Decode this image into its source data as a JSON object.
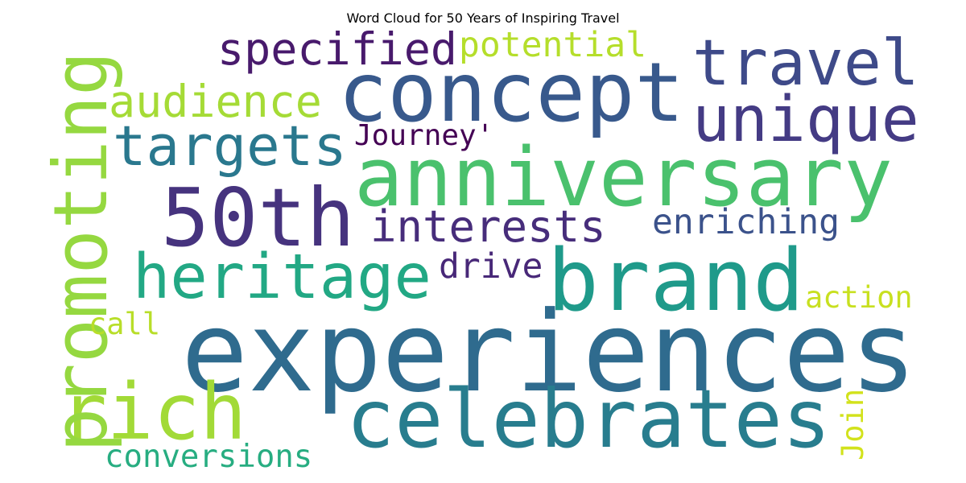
{
  "chart_data": {
    "type": "wordcloud",
    "title": "Word Cloud for 50 Years of Inspiring Travel",
    "words": [
      {
        "text": "experiences",
        "color": "#2f6b8e"
      },
      {
        "text": "concept",
        "color": "#38598c"
      },
      {
        "text": "anniversary",
        "color": "#4ac16d"
      },
      {
        "text": "brand",
        "color": "#1f9a8a"
      },
      {
        "text": "celebrates",
        "color": "#287d8e"
      },
      {
        "text": "rich",
        "color": "#a2da37"
      },
      {
        "text": "50th",
        "color": "#46337e"
      },
      {
        "text": "travel",
        "color": "#3e4a89"
      },
      {
        "text": "unique",
        "color": "#443b84"
      },
      {
        "text": "targets",
        "color": "#2a788e"
      },
      {
        "text": "heritage",
        "color": "#22a884"
      },
      {
        "text": "promoting",
        "color": "#95d840"
      },
      {
        "text": "specified",
        "color": "#481a6c"
      },
      {
        "text": "potential",
        "color": "#b5de2b"
      },
      {
        "text": "audience",
        "color": "#a5db36"
      },
      {
        "text": "Journey'",
        "color": "#440154"
      },
      {
        "text": "interests",
        "color": "#472d7b"
      },
      {
        "text": "enriching",
        "color": "#3b528b"
      },
      {
        "text": "drive",
        "color": "#482878"
      },
      {
        "text": "action",
        "color": "#c8e020"
      },
      {
        "text": "call",
        "color": "#b8de29"
      },
      {
        "text": "Join",
        "color": "#d2e21b"
      },
      {
        "text": "conversions",
        "color": "#27ad81"
      }
    ]
  }
}
